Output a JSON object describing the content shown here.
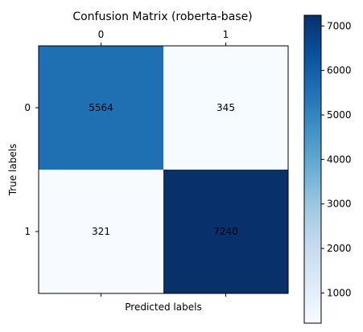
{
  "chart_data": {
    "type": "heatmap",
    "title": "Confusion Matrix (roberta-base)",
    "xlabel": "Predicted labels",
    "ylabel": "True labels",
    "x_categories": [
      "0",
      "1"
    ],
    "y_categories": [
      "0",
      "1"
    ],
    "values": [
      [
        5564,
        345
      ],
      [
        321,
        7240
      ]
    ],
    "value_labels": [
      [
        "5564",
        "345"
      ],
      [
        "321",
        "7240"
      ]
    ],
    "colormap": "Blues",
    "color_range": [
      321,
      7240
    ],
    "x_ticks_position": "top",
    "colorbar": {
      "position": "right",
      "ticks": [
        1000,
        2000,
        3000,
        4000,
        5000,
        6000,
        7000
      ],
      "tick_labels": [
        "1000",
        "2000",
        "3000",
        "4000",
        "5000",
        "6000",
        "7000"
      ]
    },
    "grid": false
  }
}
